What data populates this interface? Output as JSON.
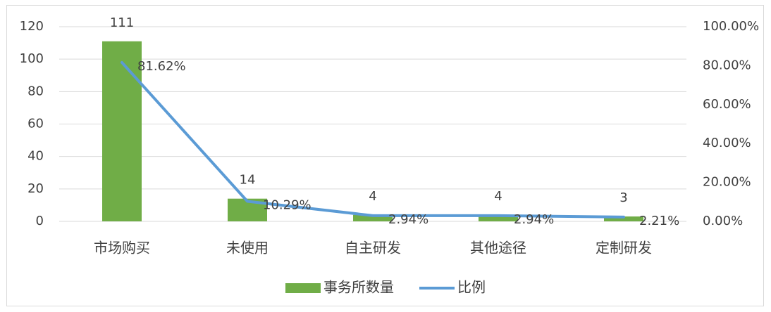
{
  "chart_data": {
    "type": "bar",
    "categories": [
      "市场购买",
      "未使用",
      "自主研发",
      "其他途径",
      "定制研发"
    ],
    "series": [
      {
        "name": "事务所数量",
        "type": "bar",
        "color": "#70ad47",
        "values": [
          111,
          14,
          4,
          4,
          3
        ]
      },
      {
        "name": "比例",
        "type": "line",
        "axis": "y2",
        "color": "#5b9bd5",
        "values": [
          81.62,
          10.29,
          2.94,
          2.94,
          2.21
        ],
        "value_labels": [
          "81.62%",
          "10.29%",
          "2.94%",
          "2.94%",
          "2.21%"
        ]
      }
    ],
    "ylim": [
      0,
      120
    ],
    "yticks": [
      0,
      20,
      40,
      60,
      80,
      100,
      120
    ],
    "y2lim": [
      0,
      100
    ],
    "y2ticks": [
      {
        "value": 0,
        "label": "0.00%"
      },
      {
        "value": 20,
        "label": "20.00%"
      },
      {
        "value": 40,
        "label": "40.00%"
      },
      {
        "value": 60,
        "label": "60.00%"
      },
      {
        "value": 80,
        "label": "80.00%"
      },
      {
        "value": 100,
        "label": "100.00%"
      }
    ],
    "grid": true,
    "legend": "bottom"
  }
}
